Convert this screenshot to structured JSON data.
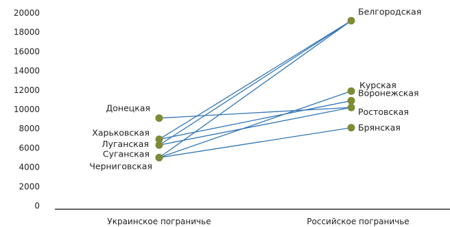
{
  "chart_data": {
    "type": "line",
    "categories": [
      "Украинское пограничье",
      "Российское пограничье"
    ],
    "ylim": [
      0,
      20000
    ],
    "yticks": [
      "0",
      "2000",
      "4000",
      "6000",
      "8000",
      "10000",
      "12000",
      "14000",
      "16000",
      "18000",
      "20000"
    ],
    "grid": false,
    "colors": {
      "line": "#2f74b5",
      "marker": "#7f8a35",
      "axis": "#333333"
    },
    "ukrainian_regions": [
      {
        "name": "Донецкая",
        "value": 9100
      },
      {
        "name": "Харьковская",
        "value": 6900
      },
      {
        "name": "Луганская",
        "value": 6300
      },
      {
        "name": "Суганская",
        "value": 5000
      },
      {
        "name": "Черниговская",
        "value": 5000
      }
    ],
    "russian_regions": [
      {
        "name": "Белгородская",
        "value": 19200
      },
      {
        "name": "Курская",
        "value": 11900
      },
      {
        "name": "Воронежская",
        "value": 10900
      },
      {
        "name": "Ростовская",
        "value": 10200
      },
      {
        "name": "Брянская",
        "value": 8100
      }
    ],
    "connections": [
      {
        "from": "Харьковская",
        "to": "Белгородская"
      },
      {
        "from": "Луганская",
        "to": "Белгородская"
      },
      {
        "from": "Черниговская",
        "to": "Белгородская"
      },
      {
        "from": "Донецкая",
        "to": "Ростовская"
      },
      {
        "from": "Харьковская",
        "to": "Воронежская"
      },
      {
        "from": "Луганская",
        "to": "Ростовская"
      },
      {
        "from": "Суганская",
        "to": "Курская"
      },
      {
        "from": "Черниговская",
        "to": "Брянская"
      }
    ]
  }
}
